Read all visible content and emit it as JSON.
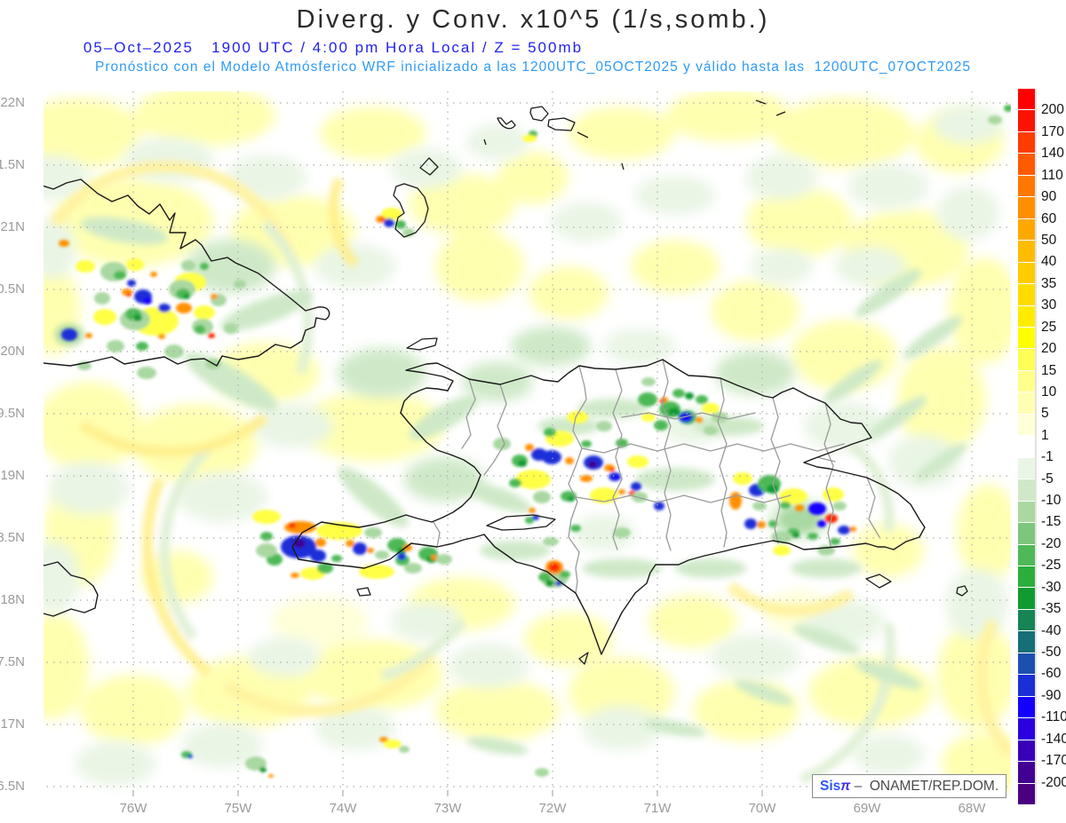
{
  "header": {
    "title": "Diverg. y Conv. x10^5 (1/s,somb.)",
    "datetime_line": "05–Oct–2025   1900 UTC / 4:00 pm Hora Local / Z = 500mb",
    "forecast_line": "Pronóstico con el Modelo Atmósferico WRF inicializado a las 1200UTC_05OCT2025 y válido hasta las  1200UTC_07OCT2025",
    "colors": {
      "title": "#2b2b2b",
      "datetime": "#2222ee",
      "forecast": "#2f9bf5"
    }
  },
  "axes": {
    "lat_ticks": [
      "22N",
      "1.5N",
      "21N",
      "0.5N",
      "20N",
      "9.5N",
      "19N",
      "8.5N",
      "18N",
      "7.5N",
      "17N",
      "6.5N"
    ],
    "lon_ticks": [
      "76W",
      "75W",
      "74W",
      "73W",
      "72W",
      "71W",
      "70W",
      "69W",
      "68W"
    ]
  },
  "colorbar": {
    "boundary_labels": [
      "200",
      "170",
      "140",
      "110",
      "90",
      "60",
      "50",
      "40",
      "35",
      "30",
      "25",
      "20",
      "15",
      "10",
      "5",
      "1",
      "-1",
      "-5",
      "-10",
      "-15",
      "-20",
      "-25",
      "-30",
      "-35",
      "-40",
      "-50",
      "-60",
      "-90",
      "-110",
      "-140",
      "-170",
      "-200"
    ],
    "cell_colors": [
      "#ff0000",
      "#fa1400",
      "#ff3c00",
      "#ff5a00",
      "#ff7800",
      "#ff9000",
      "#ffa800",
      "#ffbc00",
      "#ffcc00",
      "#ffdc00",
      "#ffec00",
      "#ffff00",
      "#ffff55",
      "#ffff8c",
      "#ffffb4",
      "#ffffd8",
      "#ffffff",
      "#e9f5e5",
      "#cfe9c8",
      "#a9d8a1",
      "#7cc77b",
      "#4eb956",
      "#2cae3c",
      "#0f9b30",
      "#168455",
      "#156f76",
      "#1c50b0",
      "#1b2fd8",
      "#1400ff",
      "#2a00e0",
      "#3a00b8",
      "#420092",
      "#4a0080"
    ]
  },
  "watermark": {
    "brand": "Sis",
    "pi": "π",
    "separator": " –  ",
    "credit": "ONAMET/REP.DOM."
  }
}
